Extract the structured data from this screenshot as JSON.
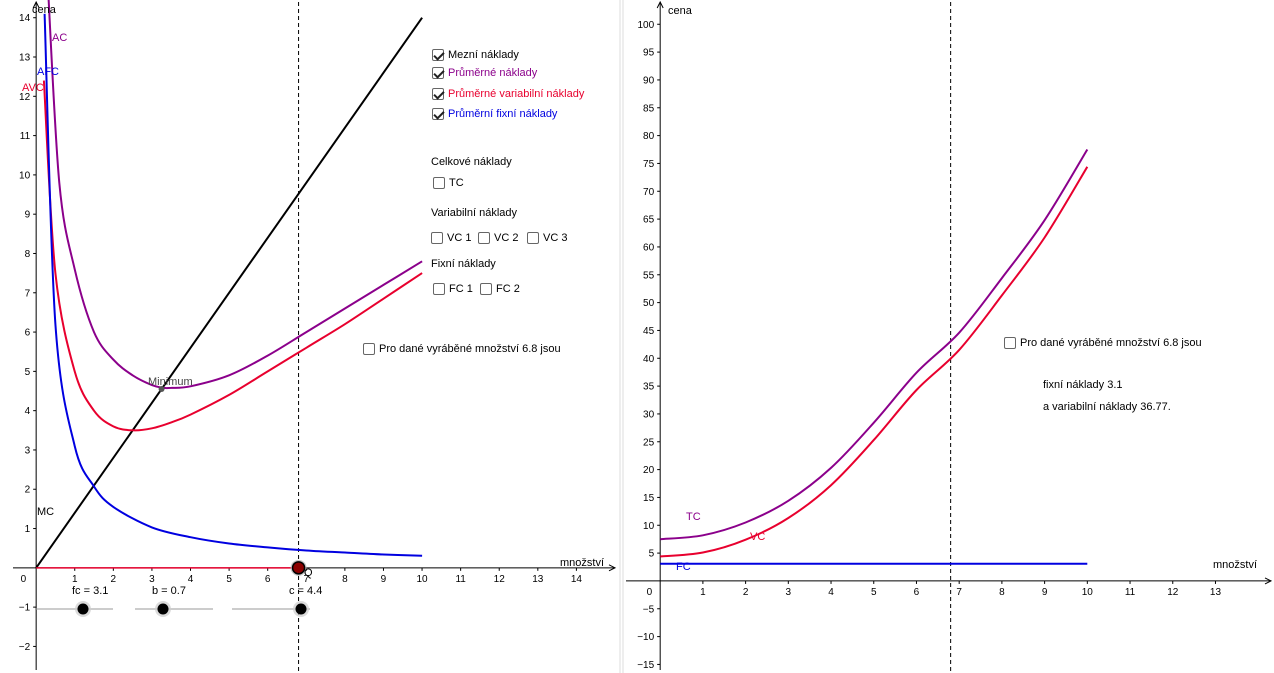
{
  "colors": {
    "mc": "#000000",
    "ac": "#8B008B",
    "avc": "#E8002E",
    "afc": "#0000E0",
    "tc": "#8B008B",
    "vc": "#E8002E",
    "fc": "#0000E0"
  },
  "left": {
    "y_axis_label": "cena",
    "x_axis_label": "množství",
    "curve_labels": {
      "ac": "AC",
      "afc": "AFC",
      "avc": "AVC",
      "mc": "MC",
      "minimum": "Minimum",
      "point_q": "Q"
    },
    "checkboxes": [
      {
        "label": "Mezní náklady",
        "checked": true,
        "color": "#000000"
      },
      {
        "label": "Průměrné náklady",
        "checked": true,
        "color": "#8B008B"
      },
      {
        "label": "Průměrné variabilní náklady",
        "checked": true,
        "color": "#E8002E"
      },
      {
        "label": "Průměrní fixní náklady",
        "checked": true,
        "color": "#0000E0"
      }
    ],
    "section_total": "Celkové náklady",
    "tc_checkbox": "TC",
    "section_variable": "Variabilní náklady",
    "vc_checkboxes": [
      "VC 1",
      "VC 2",
      "VC 3"
    ],
    "section_fixed": "Fixní náklady",
    "fc_checkboxes": [
      "FC 1",
      "FC 2"
    ],
    "info_checkbox": "Pro dané vyráběné množství 6.8 jsou",
    "sliders": [
      {
        "label": "fc = 3.1",
        "value": 3.1
      },
      {
        "label": "b = 0.7",
        "value": 0.7
      },
      {
        "label": "c = 4.4",
        "value": 4.4
      }
    ],
    "quantity_q": 6.8
  },
  "right": {
    "y_axis_label": "cena",
    "x_axis_label": "množství",
    "curve_labels": {
      "tc": "TC",
      "vc": "VC",
      "fc": "FC"
    },
    "info_checkbox": "Pro dané vyráběné množství 6.8 jsou",
    "info_line1": "fixní náklady 3.1",
    "info_line2": "a variabilní náklady 36.77."
  },
  "chart_data": [
    {
      "type": "line",
      "title": "",
      "xlabel": "množství",
      "ylabel": "cena",
      "xlim": [
        -0.6,
        15
      ],
      "ylim": [
        -2.6,
        14.4
      ],
      "params": {
        "fc": 3.1,
        "b": 0.7,
        "c": 4.4
      },
      "series": [
        {
          "name": "MC",
          "x": [
            0,
            10
          ],
          "y": [
            0,
            14
          ]
        },
        {
          "name": "AC",
          "x": [
            0.3,
            0.6,
            1,
            1.5,
            2,
            2.5,
            3,
            3.3,
            3.5,
            4,
            5,
            6,
            7,
            8,
            9,
            10
          ],
          "y": [
            14.9,
            9.8,
            7.6,
            6.0,
            5.3,
            4.9,
            4.65,
            4.58,
            4.58,
            4.62,
            4.9,
            5.4,
            6.0,
            6.6,
            7.2,
            7.8
          ]
        },
        {
          "name": "AVC",
          "x": [
            0.2,
            0.5,
            1,
            1.5,
            2,
            2.5,
            3,
            3.5,
            4,
            5,
            6,
            7,
            8,
            9,
            10
          ],
          "y": [
            12.4,
            7.5,
            5.0,
            4.0,
            3.6,
            3.5,
            3.55,
            3.7,
            3.9,
            4.4,
            5.0,
            5.6,
            6.2,
            6.85,
            7.5
          ]
        },
        {
          "name": "AFC",
          "x": [
            0.22,
            0.5,
            1,
            1.5,
            2,
            3,
            4,
            5,
            6,
            7,
            8,
            9,
            10
          ],
          "y": [
            14.1,
            6.2,
            3.1,
            2.07,
            1.55,
            1.03,
            0.78,
            0.62,
            0.52,
            0.44,
            0.39,
            0.34,
            0.31
          ]
        }
      ],
      "vertical_line_x": 6.8,
      "minimum_point": {
        "x": 3.25,
        "y": 4.55
      }
    },
    {
      "type": "line",
      "title": "",
      "xlabel": "množství",
      "ylabel": "cena",
      "xlim": [
        -0.8,
        14.3
      ],
      "ylim": [
        -16,
        104
      ],
      "series": [
        {
          "name": "TC",
          "x": [
            0,
            1,
            2,
            3,
            4,
            5,
            6,
            7,
            8,
            9,
            10
          ],
          "y": [
            7.5,
            8.2,
            10.5,
            14.4,
            20.3,
            28.4,
            37.4,
            44.6,
            54.4,
            64.8,
            77.5
          ]
        },
        {
          "name": "VC",
          "x": [
            0,
            1,
            2,
            3,
            4,
            5,
            6,
            7,
            8,
            9,
            10
          ],
          "y": [
            4.4,
            5.1,
            7.4,
            11.3,
            17.2,
            25.3,
            34.3,
            41.5,
            51.3,
            61.7,
            74.4
          ]
        },
        {
          "name": "FC",
          "x": [
            0,
            10
          ],
          "y": [
            3.1,
            3.1
          ]
        }
      ],
      "vertical_line_x": 6.8
    }
  ]
}
